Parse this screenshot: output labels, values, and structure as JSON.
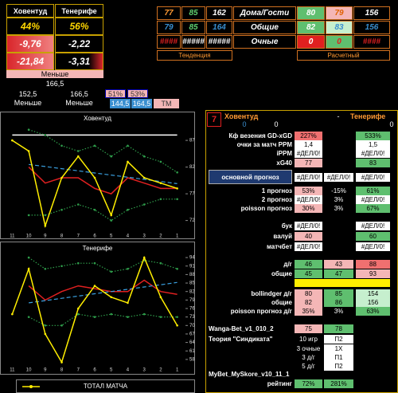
{
  "left": {
    "team1": "Ховентуд",
    "team2": "Тенерифе",
    "pct1": "44%",
    "pct2": "56%",
    "a1": "-9,76",
    "a2": "-2,22",
    "b1": "-21,84",
    "b2": "-3,31",
    "verdict": "Меньше",
    "total": "166,5",
    "t1": "152,5",
    "t2": "166,5",
    "p1": "51%",
    "p2": "53%",
    "v1": "Меньше",
    "v2": "Меньше",
    "q1": "144,5",
    "q2": "164,5",
    "tm": "ТМ"
  },
  "summary": {
    "rows": [
      [
        "77",
        "85",
        "162",
        "Дома/Гости",
        "80",
        "79",
        "156"
      ],
      [
        "79",
        "85",
        "164",
        "Общие",
        "82",
        "83",
        "156"
      ],
      [
        "####",
        "#####",
        "#####",
        "Очные",
        "0",
        "0",
        "####"
      ]
    ],
    "trend": "Тенденция",
    "calc": "Расчетный"
  },
  "stats": {
    "n": "7",
    "home": "Ховентуд",
    "dash": "-",
    "away": "Тенерифе",
    "zeros": [
      "0",
      "0",
      "0"
    ],
    "rows": [
      [
        "Кф везения GD-xGD",
        "227%",
        null,
        "533%"
      ],
      [
        "очки за матч PPM",
        "1,4",
        null,
        "1,5"
      ],
      [
        "iPPM",
        "#ДЕЛ/0!",
        null,
        "#ДЕЛ/0!"
      ],
      [
        "xG40",
        "77",
        null,
        "83"
      ],
      [
        "основной прогноз",
        "#ДЕЛ/0!",
        "#ДЕЛ/0!",
        "#ДЕЛ/0!"
      ],
      [
        "1  прогноз",
        "53%",
        "-15%",
        "61%"
      ],
      [
        "2  прогноз",
        "#ДЕЛ/0!",
        "3%",
        "#ДЕЛ/0!"
      ],
      [
        "poisson  прогноз",
        "30%",
        "3%",
        "67%"
      ],
      [
        "бук",
        "#ДЕЛ/0!",
        null,
        "#ДЕЛ/0!"
      ],
      [
        "валуй",
        "40",
        null,
        "60"
      ],
      [
        "матчбет",
        "#ДЕЛ/0!",
        null,
        "#ДЕЛ/0!"
      ],
      [
        "д/г",
        "46",
        "43",
        "88"
      ],
      [
        "общие",
        "45",
        "47",
        "93"
      ],
      [
        "bollindger д/г",
        "80",
        "85",
        "154"
      ],
      [
        "общие",
        "82",
        "86",
        "156"
      ],
      [
        "poisson  прогноз д/г",
        "35%",
        "3%",
        "63%"
      ],
      [
        "Wanga-Bet_v1_010_2",
        "75",
        "78",
        null
      ],
      [
        "Теория \"Синдиката\"",
        "10 игр",
        "П2",
        null
      ],
      [
        null,
        "3 очные",
        "1Х",
        null
      ],
      [
        null,
        "3 д/г",
        "П1",
        null
      ],
      [
        null,
        "5 д/г",
        "П2",
        null
      ],
      [
        "MyBet_MySkore_v10_11_1",
        null,
        null,
        null
      ],
      [
        "рейтинг",
        "72%",
        "281%",
        null
      ]
    ]
  },
  "chart_data": [
    {
      "type": "line",
      "title": "Ховентуд",
      "categories": [
        "11",
        "10",
        "9",
        "8",
        "7",
        "6",
        "5",
        "4",
        "3",
        "2",
        "1"
      ],
      "ylim": [
        70,
        90
      ],
      "yticks": [
        72,
        77,
        82,
        87
      ],
      "series": [
        {
          "color": "#ffffff",
          "style": "solid",
          "values": [
            88,
            88,
            88,
            88,
            88,
            88,
            88,
            88,
            88,
            88,
            88
          ]
        },
        {
          "color": "#2e9c4a",
          "style": "dotted",
          "values": [
            null,
            89,
            88,
            86,
            85,
            86,
            84,
            86,
            84,
            83,
            81
          ]
        },
        {
          "color": "#2e9c4a",
          "style": "dotted",
          "values": [
            null,
            73,
            73,
            74,
            75,
            74,
            72,
            74,
            75,
            76,
            76
          ]
        },
        {
          "color": "#e02020",
          "style": "solid",
          "values": [
            null,
            82,
            79,
            80,
            80,
            78,
            77,
            80,
            79,
            78,
            78
          ]
        },
        {
          "color": "#3aa0e0",
          "style": "dashed",
          "values": [
            null,
            82.5,
            82.1,
            81.7,
            81.3,
            80.9,
            80.5,
            80.1,
            79.7,
            79.3,
            78.9
          ]
        },
        {
          "color": "#ffee00",
          "style": "solid",
          "values": [
            87,
            85,
            71,
            80,
            84,
            80,
            73,
            83,
            80,
            79,
            78
          ]
        }
      ]
    },
    {
      "type": "line",
      "title": "Тенерифе",
      "categories": [
        "11",
        "10",
        "9",
        "8",
        "7",
        "6",
        "5",
        "4",
        "3",
        "2",
        "1"
      ],
      "ylim": [
        56,
        96
      ],
      "yticks": [
        58,
        61,
        64,
        67,
        70,
        73,
        76,
        79,
        82,
        85,
        88,
        91,
        94
      ],
      "series": [
        {
          "color": "#2e9c4a",
          "style": "dotted",
          "values": [
            null,
            94,
            90,
            91,
            92,
            92,
            89,
            90,
            93,
            92,
            90
          ]
        },
        {
          "color": "#2e9c4a",
          "style": "dotted",
          "values": [
            null,
            73,
            70,
            70,
            74,
            73,
            74,
            73,
            74,
            73,
            73
          ]
        },
        {
          "color": "#e02020",
          "style": "solid",
          "values": [
            null,
            84,
            79,
            82,
            84,
            83,
            82,
            82,
            86,
            82,
            81
          ]
        },
        {
          "color": "#3aa0e0",
          "style": "dashed",
          "values": [
            null,
            78,
            78.8,
            79.6,
            80.4,
            81.2,
            82,
            82.8,
            83.6,
            84.4,
            85.2
          ]
        },
        {
          "color": "#ffee00",
          "style": "solid",
          "values": [
            74,
            90,
            67,
            57,
            76,
            84,
            80,
            78,
            94,
            80,
            70
          ]
        }
      ]
    },
    {
      "type": "line",
      "title": "ТОТАЛ МАТЧА"
    }
  ]
}
